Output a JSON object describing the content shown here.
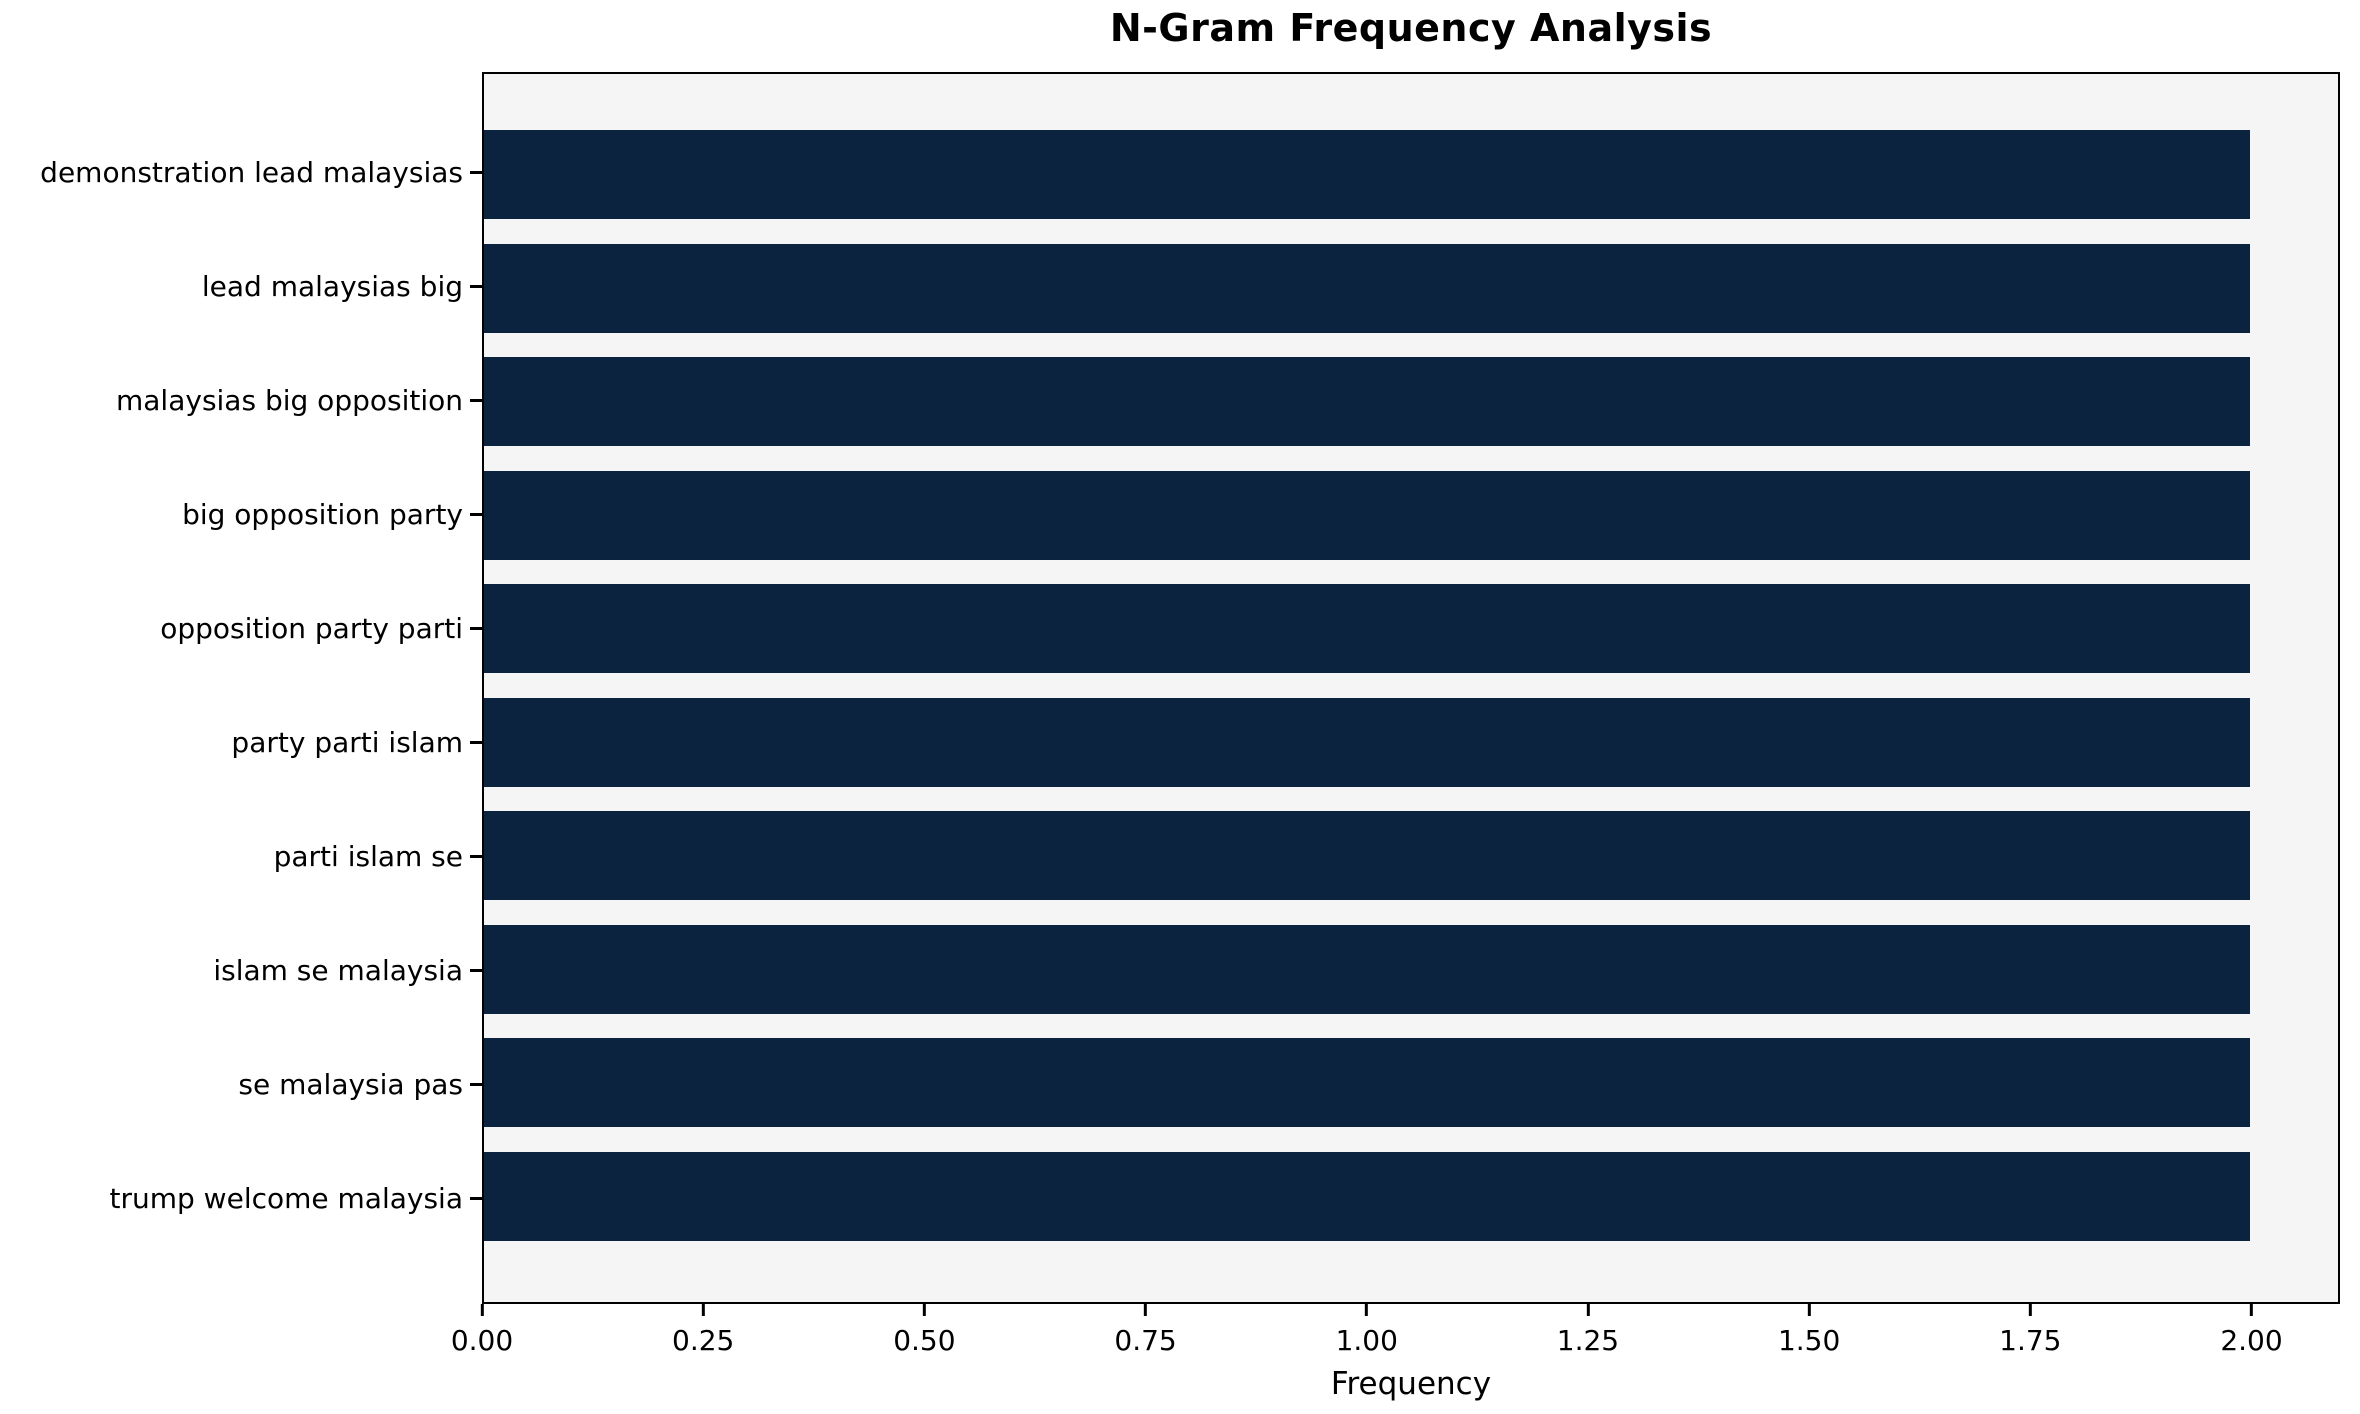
{
  "chart_data": {
    "type": "bar",
    "orientation": "horizontal",
    "title": "N-Gram Frequency Analysis",
    "xlabel": "Frequency",
    "ylabel": "",
    "categories": [
      "demonstration lead malaysias",
      "lead malaysias big",
      "malaysias big opposition",
      "big opposition party",
      "opposition party parti",
      "party parti islam",
      "parti islam se",
      "islam se malaysia",
      "se malaysia pas",
      "trump welcome malaysia"
    ],
    "values": [
      2,
      2,
      2,
      2,
      2,
      2,
      2,
      2,
      2,
      2
    ],
    "xlim": [
      0,
      2.1
    ],
    "x_tick_labels": [
      "0.00",
      "0.25",
      "0.50",
      "0.75",
      "1.00",
      "1.25",
      "1.50",
      "1.75",
      "2.00"
    ],
    "x_tick_values": [
      0,
      0.25,
      0.5,
      0.75,
      1.0,
      1.25,
      1.5,
      1.75,
      2.0
    ],
    "grid": false,
    "legend": null,
    "colors": {
      "bar": "#0c2340",
      "plot_background": "#f5f5f5",
      "figure_background": "#ffffff",
      "axis": "#000000",
      "text": "#000000"
    }
  }
}
